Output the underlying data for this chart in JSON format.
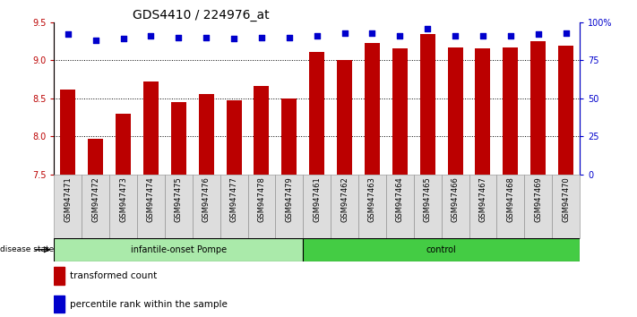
{
  "title": "GDS4410 / 224976_at",
  "samples": [
    "GSM947471",
    "GSM947472",
    "GSM947473",
    "GSM947474",
    "GSM947475",
    "GSM947476",
    "GSM947477",
    "GSM947478",
    "GSM947479",
    "GSM947461",
    "GSM947462",
    "GSM947463",
    "GSM947464",
    "GSM947465",
    "GSM947466",
    "GSM947467",
    "GSM947468",
    "GSM947469",
    "GSM947470"
  ],
  "bar_values": [
    8.61,
    7.97,
    8.3,
    8.72,
    8.45,
    8.55,
    8.47,
    8.66,
    8.5,
    9.11,
    9.0,
    9.23,
    9.16,
    9.34,
    9.17,
    9.16,
    9.17,
    9.25,
    9.19
  ],
  "percentile_values": [
    92,
    88,
    89,
    91,
    90,
    90,
    89,
    90,
    90,
    91,
    93,
    93,
    91,
    96,
    91,
    91,
    91,
    92,
    93
  ],
  "ylim_left": [
    7.5,
    9.5
  ],
  "ylim_right": [
    0,
    100
  ],
  "yticks_left": [
    7.5,
    8.0,
    8.5,
    9.0,
    9.5
  ],
  "yticks_right": [
    0,
    25,
    50,
    75,
    100
  ],
  "ytick_labels_right": [
    "0",
    "25",
    "50",
    "75",
    "100%"
  ],
  "grid_values": [
    8.0,
    8.5,
    9.0
  ],
  "bar_color": "#bb0000",
  "dot_color": "#0000cc",
  "group1_label": "infantile-onset Pompe",
  "group2_label": "control",
  "group1_color": "#aaeaaa",
  "group2_color": "#44cc44",
  "disease_state_label": "disease state",
  "legend_bar_label": "transformed count",
  "legend_dot_label": "percentile rank within the sample",
  "title_fontsize": 10,
  "axis_fontsize": 7,
  "tick_fontsize": 6,
  "group1_count": 9,
  "group2_count": 10
}
